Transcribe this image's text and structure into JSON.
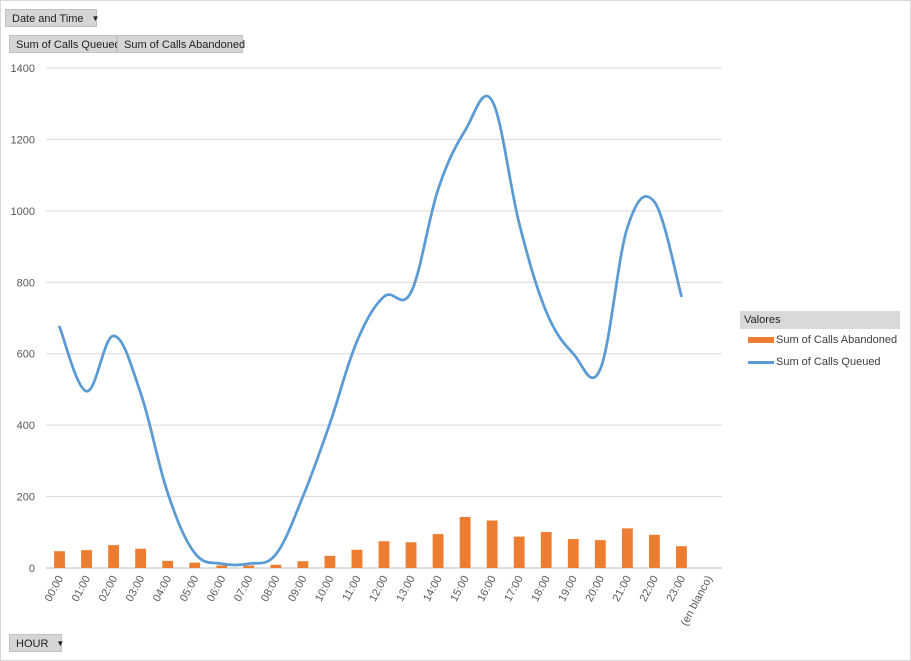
{
  "pivot": {
    "filter_field": "Date and Time",
    "value_fields": [
      "Sum of Calls Queued",
      "Sum of Calls Abandoned"
    ],
    "axis_field": "HOUR"
  },
  "legend": {
    "title": "Valores",
    "items": [
      {
        "label": "Sum of Calls Abandoned",
        "color": "#ed7d31",
        "kind": "bar"
      },
      {
        "label": "Sum of Calls Queued",
        "color": "#5b9bd5",
        "kind": "line"
      }
    ]
  },
  "chart_data": {
    "type": "bar",
    "categories": [
      "00:00",
      "01:00",
      "02:00",
      "03:00",
      "04:00",
      "05:00",
      "06:00",
      "07:00",
      "08:00",
      "09:00",
      "10:00",
      "11:00",
      "12:00",
      "13:00",
      "14:00",
      "15:00",
      "16:00",
      "17:00",
      "18:00",
      "19:00",
      "20:00",
      "21:00",
      "22:00",
      "23:00",
      "(en blanco)"
    ],
    "series": [
      {
        "name": "Sum of Calls Abandoned",
        "type": "bar",
        "color": "#ed7d31",
        "values": [
          47,
          50,
          64,
          54,
          20,
          15,
          7,
          7,
          9,
          19,
          34,
          51,
          75,
          72,
          95,
          143,
          133,
          88,
          101,
          81,
          78,
          111,
          93,
          61,
          null
        ]
      },
      {
        "name": "Sum of Calls Queued",
        "type": "line",
        "color": "#5b9bd5",
        "values": [
          675,
          495,
          650,
          490,
          210,
          42,
          12,
          12,
          38,
          200,
          405,
          635,
          760,
          772,
          1060,
          1225,
          1308,
          965,
          718,
          600,
          557,
          953,
          1025,
          762,
          null
        ]
      }
    ],
    "ylim": [
      0,
      1400
    ],
    "yticks": [
      0,
      200,
      400,
      600,
      800,
      1000,
      1200,
      1400
    ],
    "grid": true,
    "legend_position": "right"
  }
}
